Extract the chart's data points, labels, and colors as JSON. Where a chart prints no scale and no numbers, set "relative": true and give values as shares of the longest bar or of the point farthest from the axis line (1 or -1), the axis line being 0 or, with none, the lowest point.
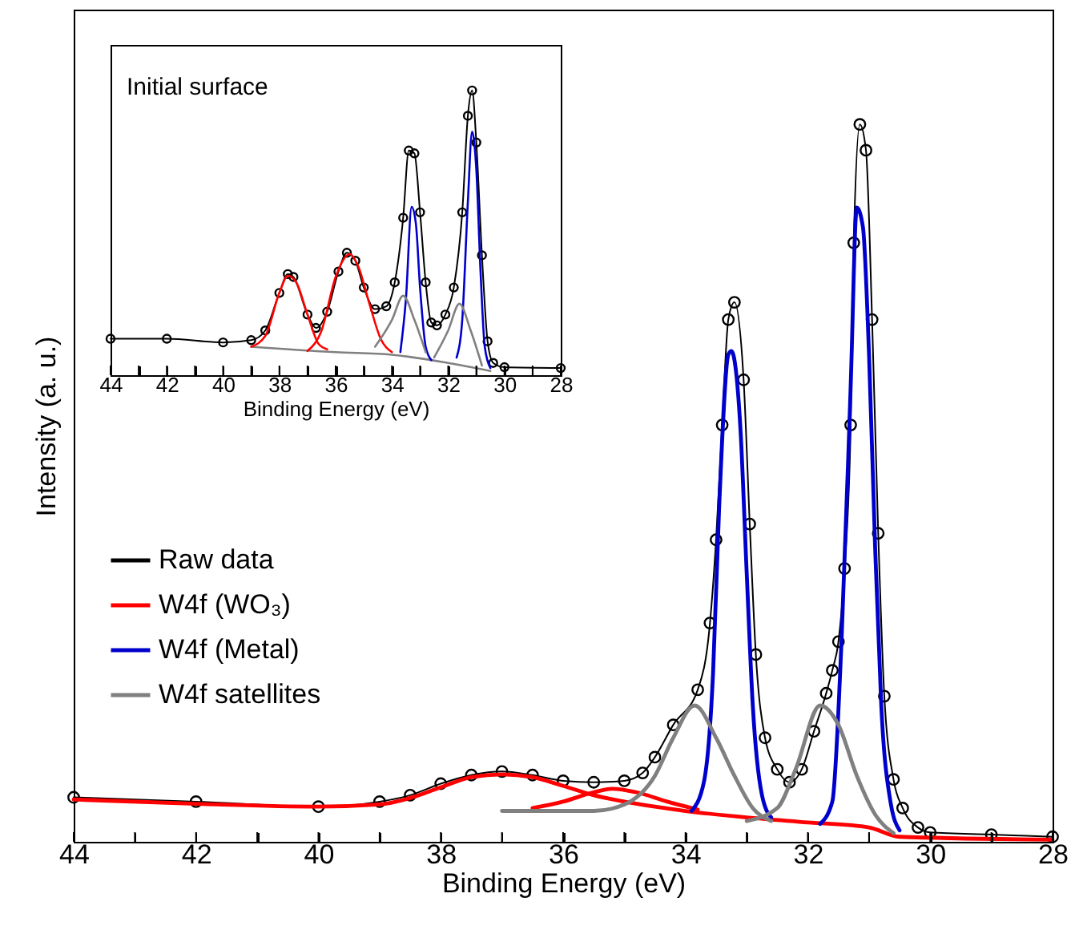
{
  "chart_data": [
    {
      "type": "line",
      "relative": true,
      "xlabel": "Binding Energy (eV)",
      "ylabel": "Intensity (a. u.)",
      "xlim": [
        44,
        28
      ],
      "xticks": [
        44,
        {
          "value": 43,
          "label": null
        },
        42,
        {
          "value": 41,
          "label": null
        },
        40,
        {
          "value": 39,
          "label": null
        },
        38,
        {
          "value": 37,
          "label": null
        },
        36,
        {
          "value": 35,
          "label": null
        },
        34,
        {
          "value": 33,
          "label": null
        },
        32,
        {
          "value": 31,
          "label": null
        },
        30,
        {
          "value": 29,
          "label": null
        },
        28
      ],
      "tick_labels": "x",
      "legend": "left",
      "grid": false,
      "series": [
        {
          "name": "Raw data",
          "color": "#000000",
          "marker": "circle",
          "x": [
            44,
            42,
            40,
            39,
            38.5,
            38,
            37.5,
            37,
            36.5,
            36,
            35.5,
            35,
            34.7,
            34.5,
            34.2,
            33.8,
            33.6,
            33.5,
            33.4,
            33.3,
            33.2,
            33.05,
            32.95,
            32.85,
            32.7,
            32.5,
            32.3,
            32.1,
            31.9,
            31.7,
            31.6,
            31.5,
            31.4,
            31.3,
            31.25,
            31.15,
            31.05,
            30.95,
            30.85,
            30.75,
            30.6,
            30.45,
            30.2,
            30,
            29,
            28
          ],
          "values": [
            0.062,
            0.056,
            0.049,
            0.056,
            0.065,
            0.081,
            0.093,
            0.098,
            0.093,
            0.085,
            0.083,
            0.085,
            0.096,
            0.118,
            0.163,
            0.212,
            0.305,
            0.421,
            0.581,
            0.728,
            0.752,
            0.644,
            0.443,
            0.261,
            0.145,
            0.101,
            0.083,
            0.101,
            0.154,
            0.207,
            0.239,
            0.279,
            0.381,
            0.581,
            0.835,
            1.0,
            0.964,
            0.728,
            0.43,
            0.203,
            0.087,
            0.047,
            0.02,
            0.013,
            0.01,
            0.007
          ]
        },
        {
          "name": "W4f (WO₃)",
          "color": "#ff0000",
          "x": [
            44,
            42,
            40,
            39,
            38.5,
            38,
            37.5,
            37,
            36.5,
            36,
            35.5,
            35,
            34.5,
            34,
            33,
            32,
            31,
            30.5,
            28
          ],
          "values": [
            0.059,
            0.053,
            0.049,
            0.052,
            0.061,
            0.076,
            0.09,
            0.094,
            0.09,
            0.078,
            0.065,
            0.056,
            0.049,
            0.043,
            0.034,
            0.027,
            0.02,
            0.007,
            0.003
          ]
        },
        {
          "color": "#ff0000",
          "x": [
            36.5,
            36,
            35.5,
            35.2,
            34.8,
            34.3,
            33.8
          ],
          "values": [
            0.047,
            0.056,
            0.069,
            0.074,
            0.069,
            0.056,
            0.045
          ]
        },
        {
          "name": "W4f (Metal)",
          "color": "#0000cc",
          "x": [
            33.9,
            33.7,
            33.55,
            33.45,
            33.3,
            33.25,
            33.1,
            33,
            32.9,
            32.75,
            32.6
          ],
          "values": [
            0.043,
            0.083,
            0.234,
            0.466,
            0.679,
            0.684,
            0.573,
            0.376,
            0.19,
            0.065,
            0.034
          ]
        },
        {
          "color": "#0000cc",
          "x": [
            31.8,
            31.6,
            31.45,
            31.3,
            31.2,
            31.1,
            31,
            30.9,
            30.8,
            30.65,
            30.5
          ],
          "values": [
            0.025,
            0.056,
            0.279,
            0.635,
            0.884,
            0.857,
            0.679,
            0.41,
            0.19,
            0.056,
            0.016
          ]
        },
        {
          "name": "W4f satellites",
          "color": "#808080",
          "x": [
            37,
            35.5,
            35,
            34.5,
            34.2,
            33.85,
            33.5,
            33.2,
            32.9,
            32.6
          ],
          "values": [
            0.043,
            0.043,
            0.052,
            0.092,
            0.145,
            0.19,
            0.145,
            0.092,
            0.047,
            0.029
          ]
        },
        {
          "color": "#808080",
          "x": [
            33,
            32.5,
            32.2,
            31.8,
            31.5,
            31.2,
            30.9,
            30.6
          ],
          "values": [
            0.029,
            0.047,
            0.101,
            0.19,
            0.163,
            0.092,
            0.038,
            0.012
          ]
        }
      ]
    },
    {
      "type": "line",
      "relative": true,
      "title": "Initial surface",
      "xlabel": "Binding Energy (eV)",
      "xlim": [
        44,
        28
      ],
      "xticks": [
        44,
        {
          "value": 43,
          "label": null
        },
        42,
        {
          "value": 41,
          "label": null
        },
        40,
        {
          "value": 39,
          "label": null
        },
        38,
        {
          "value": 37,
          "label": null
        },
        36,
        {
          "value": 35,
          "label": null
        },
        34,
        {
          "value": 33,
          "label": null
        },
        32,
        {
          "value": 31,
          "label": null
        },
        30,
        {
          "value": 29,
          "label": null
        },
        28
      ],
      "tick_labels": "x",
      "grid": false,
      "series": [
        {
          "color": "#000000",
          "marker": "circle",
          "x": [
            44,
            42,
            40,
            39,
            38.5,
            38,
            37.7,
            37.5,
            37,
            36.7,
            36.3,
            35.9,
            35.6,
            35.3,
            35,
            34.6,
            34.2,
            33.9,
            33.6,
            33.4,
            33.2,
            33,
            32.8,
            32.6,
            32.4,
            32.1,
            31.8,
            31.5,
            31.3,
            31.15,
            31,
            30.8,
            30.6,
            30.4,
            30,
            28
          ],
          "values": [
            0.128,
            0.128,
            0.115,
            0.123,
            0.157,
            0.289,
            0.355,
            0.345,
            0.213,
            0.166,
            0.223,
            0.364,
            0.43,
            0.402,
            0.308,
            0.232,
            0.242,
            0.326,
            0.553,
            0.789,
            0.779,
            0.572,
            0.326,
            0.185,
            0.175,
            0.213,
            0.308,
            0.572,
            0.911,
            1.0,
            0.817,
            0.421,
            0.119,
            0.043,
            0.028,
            0.025
          ]
        },
        {
          "color": "#808080",
          "x": [
            39,
            36,
            34,
            32,
            30.5
          ],
          "values": [
            0.1,
            0.081,
            0.072,
            0.043,
            0.015
          ]
        },
        {
          "color": "#ff0000",
          "x": [
            39,
            38.5,
            38,
            37.7,
            37.4,
            37,
            36.6,
            36.3
          ],
          "values": [
            0.1,
            0.138,
            0.289,
            0.349,
            0.326,
            0.213,
            0.109,
            0.091
          ]
        },
        {
          "color": "#ff0000",
          "x": [
            37,
            36.5,
            36,
            35.5,
            35.2,
            34.8,
            34.4,
            34
          ],
          "values": [
            0.085,
            0.157,
            0.345,
            0.425,
            0.383,
            0.251,
            0.128,
            0.081
          ]
        },
        {
          "color": "#0000cc",
          "x": [
            33.7,
            33.5,
            33.3,
            33.15,
            33,
            32.8,
            32.6
          ],
          "values": [
            0.081,
            0.27,
            0.591,
            0.534,
            0.308,
            0.1,
            0.053
          ]
        },
        {
          "color": "#0000cc",
          "x": [
            31.7,
            31.5,
            31.3,
            31.15,
            31,
            30.85,
            30.7,
            30.5
          ],
          "values": [
            0.062,
            0.194,
            0.609,
            0.855,
            0.723,
            0.364,
            0.1,
            0.025
          ]
        },
        {
          "color": "#808080",
          "x": [
            34.6,
            34,
            33.6,
            33.2,
            32.8
          ],
          "values": [
            0.1,
            0.194,
            0.279,
            0.194,
            0.081
          ]
        },
        {
          "color": "#808080",
          "x": [
            32.5,
            32,
            31.6,
            31.2,
            30.8
          ],
          "values": [
            0.062,
            0.157,
            0.251,
            0.157,
            0.034
          ]
        }
      ]
    }
  ]
}
